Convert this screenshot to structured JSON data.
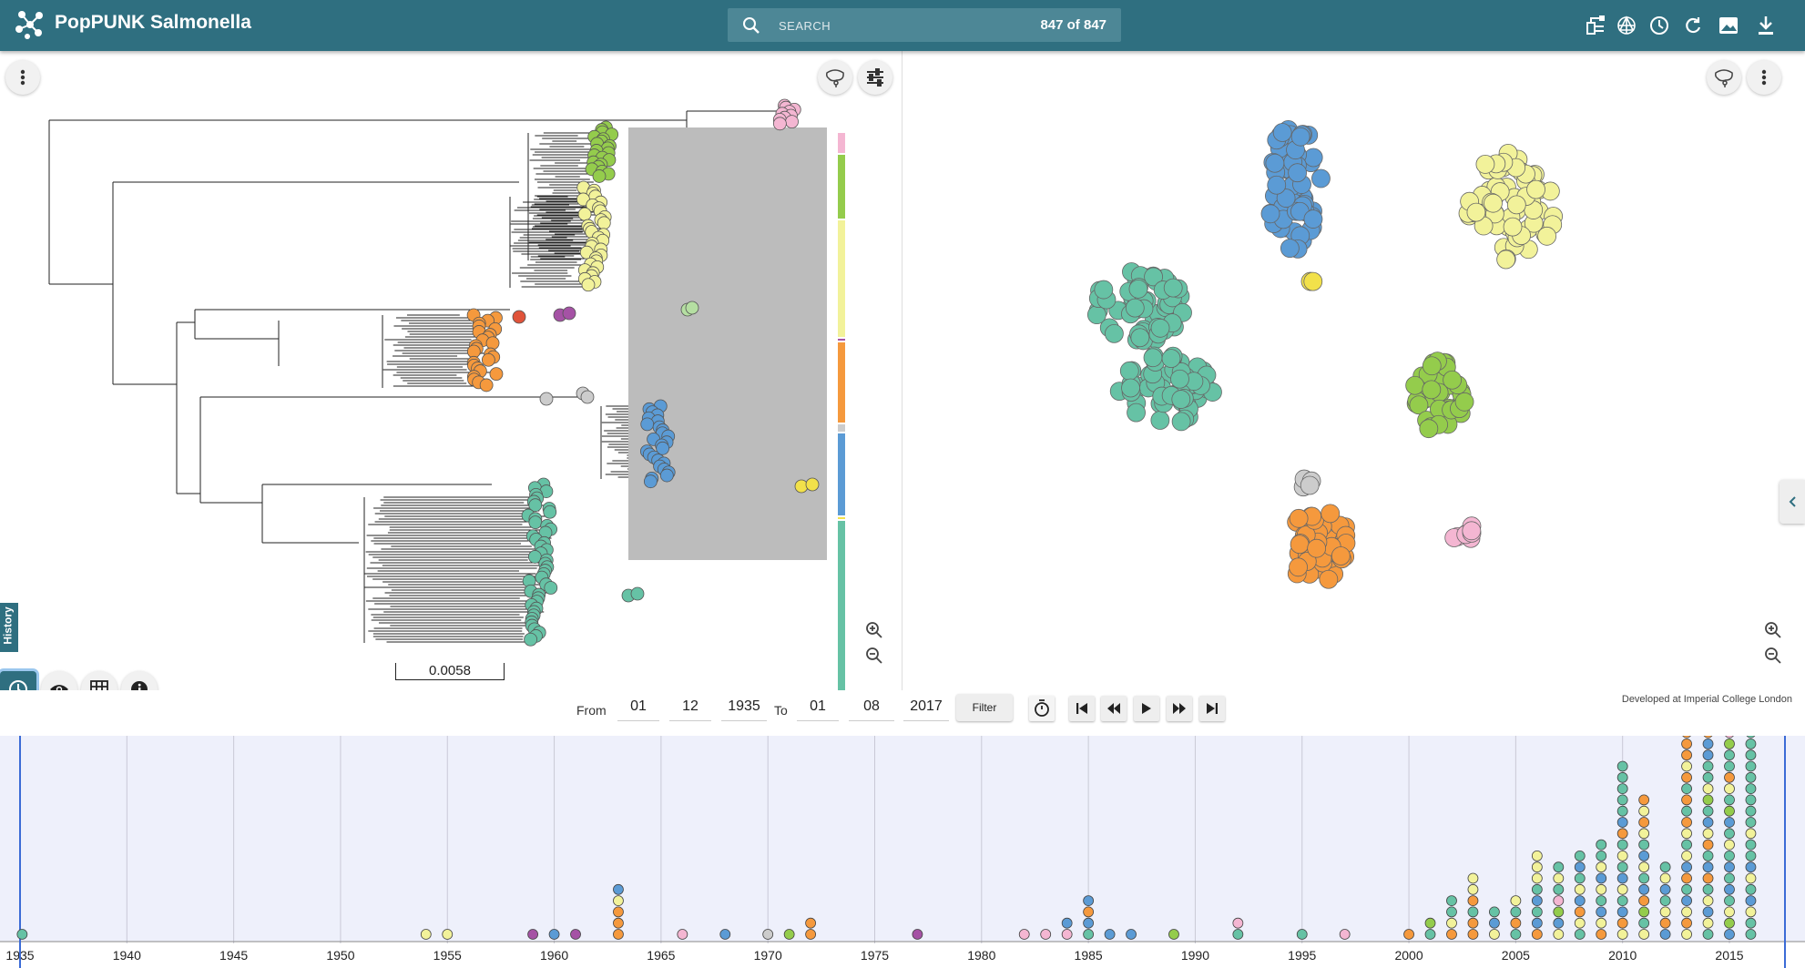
{
  "app": {
    "title": "PopPUNK Salmonella"
  },
  "search": {
    "placeholder": "SEARCH",
    "count": "847 of 847"
  },
  "toolbar_icons": [
    "tree-icon",
    "network-icon",
    "clock-icon",
    "refresh-icon",
    "image-icon",
    "download-icon"
  ],
  "tree": {
    "scale_label": "0.0058"
  },
  "history_tab": {
    "label": "History"
  },
  "date_filter": {
    "from_label": "From",
    "to_label": "To",
    "from_day": "01",
    "from_month": "12",
    "from_year": "1935",
    "to_day": "01",
    "to_month": "08",
    "to_year": "2017",
    "filter_label": "Filter"
  },
  "credit": "Developed at Imperial College London",
  "colors": {
    "header": "#2f6f80",
    "teal": "#66c2a5",
    "blue": "#5b9bd5",
    "yellow": "#f2f29a",
    "green": "#94cc4c",
    "orange": "#f5993d",
    "pink": "#f4b6d2",
    "purple": "#a552a5",
    "grey": "#cccccc",
    "lightgreen": "#b5dfa2",
    "gold": "#f2e14a",
    "red": "#e0533a"
  },
  "timeline": {
    "year_ticks": [
      "1935",
      "1940",
      "1945",
      "1950",
      "1955",
      "1960",
      "1965",
      "1970",
      "1975",
      "1980",
      "1985",
      "1990",
      "1995",
      "2000",
      "2005",
      "2010",
      "2015"
    ],
    "stacks": [
      {
        "year": 1935.1,
        "c": [
          "teal"
        ]
      },
      {
        "year": 1954,
        "c": [
          "yellow"
        ]
      },
      {
        "year": 1955,
        "c": [
          "yellow"
        ]
      },
      {
        "year": 1959,
        "c": [
          "purple"
        ]
      },
      {
        "year": 1960,
        "c": [
          "blue"
        ]
      },
      {
        "year": 1961,
        "c": [
          "purple"
        ]
      },
      {
        "year": 1963,
        "c": [
          "orange",
          "orange",
          "orange",
          "yellow",
          "blue"
        ]
      },
      {
        "year": 1966,
        "c": [
          "pink"
        ]
      },
      {
        "year": 1968,
        "c": [
          "blue"
        ]
      },
      {
        "year": 1970,
        "c": [
          "grey"
        ]
      },
      {
        "year": 1971,
        "c": [
          "green"
        ]
      },
      {
        "year": 1972,
        "c": [
          "orange",
          "orange"
        ]
      },
      {
        "year": 1977,
        "c": [
          "purple"
        ]
      },
      {
        "year": 1982,
        "c": [
          "pink"
        ]
      },
      {
        "year": 1983,
        "c": [
          "pink"
        ]
      },
      {
        "year": 1984,
        "c": [
          "pink",
          "blue"
        ]
      },
      {
        "year": 1985,
        "c": [
          "teal",
          "blue",
          "orange",
          "blue"
        ]
      },
      {
        "year": 1986,
        "c": [
          "blue"
        ]
      },
      {
        "year": 1987,
        "c": [
          "blue"
        ]
      },
      {
        "year": 1989,
        "c": [
          "green"
        ]
      },
      {
        "year": 1992,
        "c": [
          "teal",
          "pink"
        ]
      },
      {
        "year": 1995,
        "c": [
          "teal"
        ]
      },
      {
        "year": 1997,
        "c": [
          "pink"
        ]
      },
      {
        "year": 2000,
        "c": [
          "orange"
        ]
      },
      {
        "year": 2001,
        "c": [
          "teal",
          "green"
        ]
      },
      {
        "year": 2002,
        "c": [
          "orange",
          "yellow",
          "teal",
          "teal"
        ]
      },
      {
        "year": 2003,
        "c": [
          "orange",
          "orange",
          "teal",
          "orange",
          "yellow",
          "yellow"
        ]
      },
      {
        "year": 2004,
        "c": [
          "yellow",
          "blue",
          "teal"
        ]
      },
      {
        "year": 2005,
        "c": [
          "teal",
          "orange",
          "teal",
          "yellow"
        ]
      },
      {
        "year": 2006,
        "c": [
          "orange",
          "blue",
          "teal",
          "blue",
          "teal",
          "yellow",
          "yellow",
          "yellow"
        ]
      },
      {
        "year": 2007,
        "c": [
          "yellow",
          "blue",
          "green",
          "pink",
          "teal",
          "yellow",
          "teal"
        ]
      },
      {
        "year": 2008,
        "c": [
          "teal",
          "yellow",
          "orange",
          "blue",
          "yellow",
          "teal",
          "blue",
          "teal"
        ]
      },
      {
        "year": 2009,
        "c": [
          "orange",
          "yellow",
          "blue",
          "teal",
          "yellow",
          "blue",
          "yellow",
          "teal",
          "teal"
        ]
      },
      {
        "year": 2010,
        "c": [
          "yellow",
          "orange",
          "blue",
          "teal",
          "yellow",
          "blue",
          "teal",
          "yellow",
          "teal",
          "orange",
          "blue",
          "teal",
          "teal",
          "teal",
          "teal",
          "teal"
        ]
      },
      {
        "year": 2011,
        "c": [
          "yellow",
          "teal",
          "green",
          "orange",
          "blue",
          "teal",
          "yellow",
          "blue",
          "teal",
          "yellow",
          "orange",
          "yellow",
          "orange"
        ]
      },
      {
        "year": 2012,
        "c": [
          "blue",
          "orange",
          "yellow",
          "teal",
          "blue",
          "yellow",
          "teal"
        ]
      },
      {
        "year": 2013,
        "c": [
          "yellow",
          "orange",
          "yellow",
          "blue",
          "teal",
          "orange",
          "blue",
          "yellow",
          "teal",
          "yellow",
          "orange",
          "teal",
          "orange",
          "teal",
          "orange",
          "yellow",
          "orange",
          "orange",
          "orange",
          "orange",
          "orange",
          "orange"
        ]
      },
      {
        "year": 2014,
        "c": [
          "teal",
          "yellow",
          "blue",
          "yellow",
          "teal",
          "orange",
          "blue",
          "teal",
          "orange",
          "yellow",
          "blue",
          "teal",
          "green",
          "yellow",
          "teal",
          "teal",
          "blue",
          "blue",
          "orange",
          "blue",
          "teal",
          "teal",
          "blue",
          "teal",
          "blue",
          "blue",
          "blue"
        ]
      },
      {
        "year": 2015,
        "c": [
          "blue",
          "green",
          "yellow",
          "teal",
          "blue",
          "teal",
          "blue",
          "teal",
          "yellow",
          "teal",
          "blue",
          "green",
          "teal",
          "yellow",
          "orange",
          "teal",
          "teal",
          "green",
          "pink",
          "teal",
          "green",
          "teal",
          "teal",
          "blue",
          "teal",
          "blue"
        ]
      },
      {
        "year": 2016,
        "c": [
          "teal",
          "teal",
          "yellow",
          "blue",
          "teal",
          "yellow",
          "blue",
          "teal",
          "teal",
          "yellow",
          "teal",
          "teal",
          "teal",
          "teal",
          "teal",
          "teal",
          "teal",
          "teal",
          "teal",
          "teal",
          "teal",
          "teal",
          "teal",
          "teal",
          "teal",
          "teal",
          "teal"
        ]
      }
    ]
  }
}
